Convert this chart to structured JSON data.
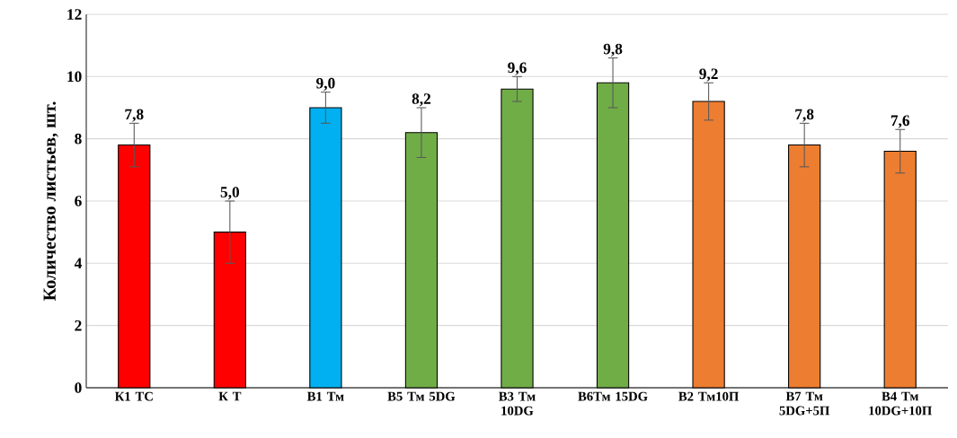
{
  "chart_data": {
    "type": "bar",
    "ylabel": "Количество листьев, шт.",
    "categories": [
      "К1 ТС",
      "К Т",
      "В1 Тм",
      "В5 Тм 5DG",
      "В3 Тм 10DG",
      "В6Тм 15DG",
      "В2 Тм10П",
      "В7 Тм 5DG+5П",
      "В4 Тм 10DG+10П"
    ],
    "values": [
      7.8,
      5.0,
      9.0,
      8.2,
      9.6,
      9.8,
      9.2,
      7.8,
      7.6
    ],
    "errors": [
      0.7,
      1.0,
      0.5,
      0.8,
      0.4,
      0.8,
      0.6,
      0.7,
      0.7
    ],
    "value_labels": [
      "7,8",
      "5,0",
      "9,0",
      "8,2",
      "9,6",
      "9,8",
      "9,2",
      "7,8",
      "7,6"
    ],
    "colors": [
      "#ff0000",
      "#ff0000",
      "#00b0f0",
      "#70ad47",
      "#70ad47",
      "#70ad47",
      "#ed7d31",
      "#ed7d31",
      "#ed7d31"
    ],
    "ylim": [
      0,
      12
    ],
    "yticks": [
      0,
      2,
      4,
      6,
      8,
      10,
      12
    ],
    "grid": "y"
  }
}
